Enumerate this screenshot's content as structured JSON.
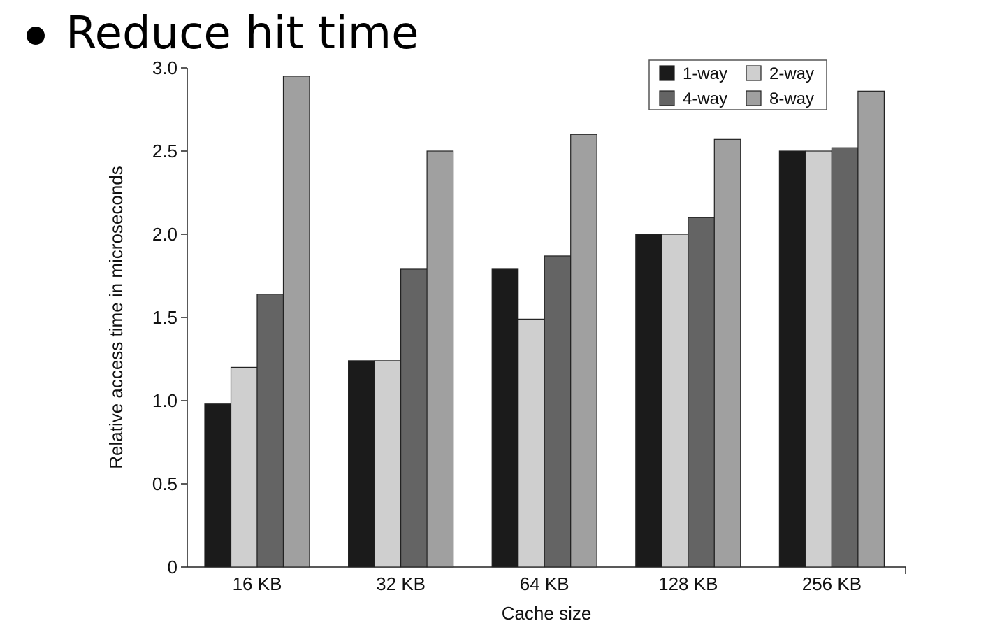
{
  "slide": {
    "heading": "Reduce hit time"
  },
  "colors": {
    "1-way": "#1b1b1b",
    "2-way": "#cfcfcf",
    "4-way": "#646464",
    "8-way": "#a0a0a0"
  },
  "chart_data": {
    "type": "bar",
    "title": "",
    "xlabel": "Cache size",
    "ylabel": "Relative access time in microseconds",
    "categories": [
      "16 KB",
      "32 KB",
      "64 KB",
      "128 KB",
      "256 KB"
    ],
    "ylim": [
      0,
      3.0
    ],
    "yticks": [
      "0",
      "0.5",
      "1.0",
      "1.5",
      "2.0",
      "2.5",
      "3.0"
    ],
    "ytick_values": [
      0,
      0.5,
      1.0,
      1.5,
      2.0,
      2.5,
      3.0
    ],
    "grid": false,
    "legend_position": "top-right",
    "series": [
      {
        "name": "1-way",
        "values": [
          0.98,
          1.24,
          1.79,
          2.0,
          2.5
        ]
      },
      {
        "name": "2-way",
        "values": [
          1.2,
          1.24,
          1.49,
          2.0,
          2.5
        ]
      },
      {
        "name": "4-way",
        "values": [
          1.64,
          1.79,
          1.87,
          2.1,
          2.52
        ]
      },
      {
        "name": "8-way",
        "values": [
          2.95,
          2.5,
          2.6,
          2.57,
          2.86
        ]
      }
    ],
    "legend_layout": [
      [
        "1-way",
        "2-way"
      ],
      [
        "4-way",
        "8-way"
      ]
    ]
  }
}
